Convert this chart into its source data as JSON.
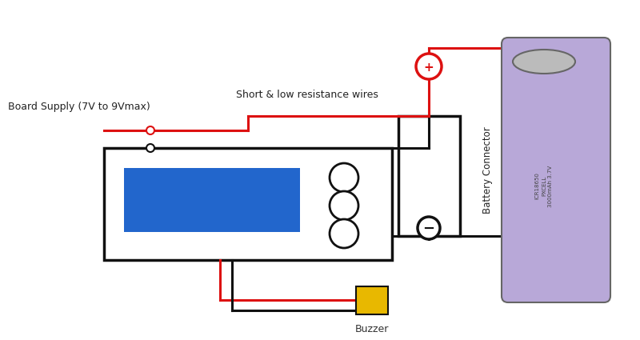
{
  "background_color": "#ffffff",
  "fig_width": 8.0,
  "fig_height": 4.25,
  "dpi": 100,
  "labels": {
    "board_supply": "Board Supply (7V to 9Vmax)",
    "short_wire": "Short & low resistance wires",
    "battery_connector": "Battery Connector",
    "buzzer": "Buzzer"
  },
  "colors": {
    "red_wire": "#dd1111",
    "black_wire": "#111111",
    "module_box": "#111111",
    "lcd_fill": "#2266cc",
    "battery_body": "#b8a8d8",
    "battery_cap": "#bbbbbb",
    "battery_border": "#666666",
    "buzzer_fill": "#e8b800",
    "connector_plus": "#dd1111",
    "connector_minus": "#111111",
    "bg_white": "#ffffff"
  },
  "lw": 2.2
}
